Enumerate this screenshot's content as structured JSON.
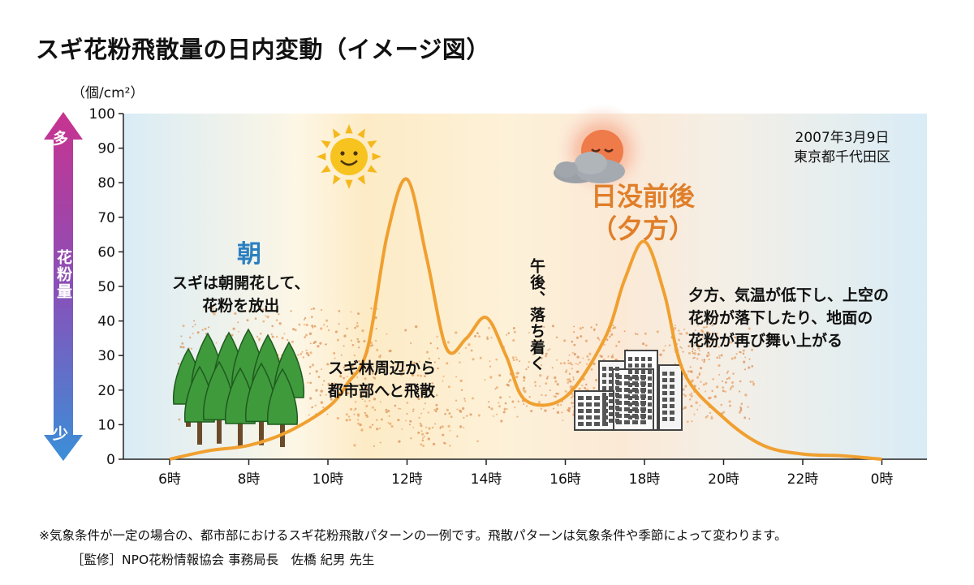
{
  "title": "スギ花粉飛散量の日内変動（イメージ図）",
  "unit": "（個/cm²）",
  "location": [
    "2007年3月9日",
    "東京都千代田区"
  ],
  "scale": {
    "label": "花粉量",
    "many": "多",
    "few": "少"
  },
  "annotations": {
    "asa": "朝",
    "morning": [
      "スギは朝開花して、",
      "花粉を放出"
    ],
    "spread": [
      "スギ林周辺から",
      "都市部へと飛散"
    ],
    "afternoon": "午後、落ち着く",
    "sunset": [
      "日没前後",
      "（夕方）"
    ],
    "evening": [
      "夕方、気温が低下し、上空の",
      "花粉が落下したり、地面の",
      "花粉が再び舞い上がる"
    ]
  },
  "footnote": "※気象条件が一定の場合の、都市部におけるスギ花粉飛散パターンの一例です。飛散パターンは気象条件や季節によって変わります。",
  "supervisor": "［監修］NPO花粉情報協会 事務局長　佐橋 紀男 先生",
  "icons": [
    "sun-icon",
    "sunset-icon",
    "cloud-icon",
    "trees-icon",
    "buildings-icon"
  ],
  "colors": {
    "curve": "#f0a030",
    "sunset_text": "#e07f2a",
    "asa_text": "#2a7fc1",
    "scale_top": "#c8338f",
    "scale_bottom": "#3a8fd8"
  },
  "chart_data": {
    "type": "line",
    "ylim": [
      0,
      100
    ],
    "yticks": [
      "0",
      "10",
      "20",
      "30",
      "40",
      "50",
      "60",
      "70",
      "80",
      "90",
      "100"
    ],
    "xticks": [
      "6時",
      "8時",
      "10時",
      "12時",
      "14時",
      "16時",
      "18時",
      "20時",
      "22時",
      "0時"
    ],
    "xlim": [
      6,
      24
    ],
    "series": [
      {
        "x": [
          6,
          7,
          8,
          9,
          10,
          10.5,
          11,
          11.5,
          12,
          12.5,
          13,
          13.5,
          14,
          14.5,
          15,
          16,
          17,
          17.5,
          18,
          18.5,
          19,
          20,
          21,
          22,
          23,
          24
        ],
        "values": [
          0,
          2.5,
          4,
          8,
          15,
          22,
          32,
          65,
          81,
          58,
          32,
          35,
          41,
          30,
          17,
          18,
          35,
          52,
          63,
          48,
          25,
          12,
          4,
          1.5,
          1,
          0
        ]
      }
    ]
  }
}
